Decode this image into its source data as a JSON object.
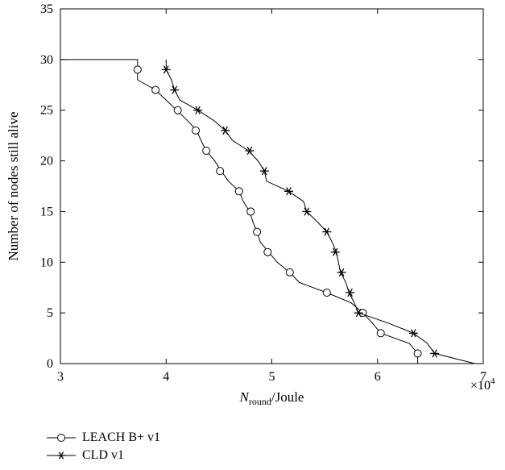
{
  "chart_data": {
    "type": "line",
    "title": "",
    "xlabel_main": "N",
    "xlabel_sub": "round",
    "xlabel_tail": "/Joule",
    "ylabel": "Number of nodes still alive",
    "x_multiplier_base": "×10",
    "x_multiplier_exp": "4",
    "xlim": [
      3,
      7
    ],
    "ylim": [
      0,
      35
    ],
    "x_ticks": [
      "3",
      "4",
      "5",
      "6",
      "7"
    ],
    "y_ticks": [
      "0",
      "5",
      "10",
      "15",
      "20",
      "25",
      "30",
      "35"
    ],
    "grid": false,
    "legend_position": "below",
    "series": [
      {
        "name": "LEACH B+ v1",
        "marker": "circle",
        "line": [
          [
            3.0,
            30
          ],
          [
            3.73,
            30
          ],
          [
            3.73,
            28
          ],
          [
            3.9,
            27
          ],
          [
            4.1,
            25
          ],
          [
            4.2,
            24
          ],
          [
            4.29,
            23
          ],
          [
            4.33,
            22
          ],
          [
            4.38,
            21
          ],
          [
            4.46,
            20
          ],
          [
            4.52,
            19
          ],
          [
            4.59,
            18
          ],
          [
            4.69,
            17
          ],
          [
            4.73,
            16
          ],
          [
            4.79,
            15
          ],
          [
            4.82,
            14
          ],
          [
            4.86,
            13
          ],
          [
            4.89,
            12
          ],
          [
            4.97,
            11
          ],
          [
            5.05,
            10
          ],
          [
            5.17,
            9
          ],
          [
            5.26,
            8
          ],
          [
            5.52,
            7
          ],
          [
            5.75,
            6
          ],
          [
            5.86,
            5
          ],
          [
            5.95,
            4
          ],
          [
            6.03,
            3
          ],
          [
            6.3,
            2
          ],
          [
            6.38,
            1
          ],
          [
            6.38,
            0
          ]
        ],
        "markers": [
          [
            3.73,
            29
          ],
          [
            3.9,
            27
          ],
          [
            4.11,
            25
          ],
          [
            4.28,
            23
          ],
          [
            4.38,
            21
          ],
          [
            4.51,
            19
          ],
          [
            4.69,
            17
          ],
          [
            4.8,
            15
          ],
          [
            4.86,
            13
          ],
          [
            4.96,
            11
          ],
          [
            5.17,
            9
          ],
          [
            5.52,
            7
          ],
          [
            5.86,
            5
          ],
          [
            6.03,
            3
          ],
          [
            6.38,
            1
          ]
        ]
      },
      {
        "name": "CLD v1",
        "marker": "star",
        "line": [
          [
            4.0,
            30
          ],
          [
            4.0,
            29
          ],
          [
            4.05,
            28
          ],
          [
            4.08,
            27
          ],
          [
            4.13,
            26
          ],
          [
            4.3,
            25
          ],
          [
            4.45,
            24
          ],
          [
            4.56,
            23
          ],
          [
            4.63,
            22
          ],
          [
            4.78,
            21
          ],
          [
            4.87,
            20
          ],
          [
            4.93,
            19
          ],
          [
            4.95,
            18
          ],
          [
            5.16,
            17
          ],
          [
            5.3,
            16
          ],
          [
            5.33,
            15
          ],
          [
            5.43,
            14
          ],
          [
            5.52,
            13
          ],
          [
            5.57,
            12
          ],
          [
            5.61,
            11
          ],
          [
            5.63,
            10
          ],
          [
            5.65,
            9
          ],
          [
            5.7,
            8
          ],
          [
            5.73,
            7
          ],
          [
            5.78,
            6
          ],
          [
            5.82,
            5
          ],
          [
            6.1,
            4
          ],
          [
            6.34,
            3
          ],
          [
            6.47,
            2
          ],
          [
            6.54,
            1
          ],
          [
            6.92,
            0
          ]
        ],
        "markers": [
          [
            4.0,
            29
          ],
          [
            4.08,
            27
          ],
          [
            4.3,
            25
          ],
          [
            4.56,
            23
          ],
          [
            4.79,
            21
          ],
          [
            4.93,
            19
          ],
          [
            5.16,
            17
          ],
          [
            5.33,
            15
          ],
          [
            5.52,
            13
          ],
          [
            5.6,
            11
          ],
          [
            5.66,
            9
          ],
          [
            5.74,
            7
          ],
          [
            5.82,
            5
          ],
          [
            6.34,
            3
          ],
          [
            6.54,
            1
          ]
        ]
      }
    ]
  }
}
